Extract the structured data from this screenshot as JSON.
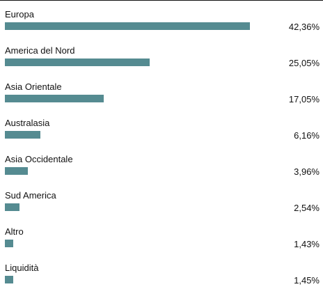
{
  "chart_data": {
    "type": "bar",
    "orientation": "horizontal",
    "categories": [
      "Europa",
      "America del Nord",
      "Asia Orientale",
      "Australasia",
      "Asia Occidentale",
      "Sud America",
      "Altro",
      "Liquidità"
    ],
    "values": [
      42.36,
      25.05,
      17.05,
      6.16,
      3.96,
      2.54,
      1.43,
      1.45
    ],
    "value_labels": [
      "42,36%",
      "25,05%",
      "17,05%",
      "6,16%",
      "3,96%",
      "2,54%",
      "1,43%",
      "1,45%"
    ],
    "bar_color": "#558b91",
    "grid": false,
    "legend": "none"
  }
}
